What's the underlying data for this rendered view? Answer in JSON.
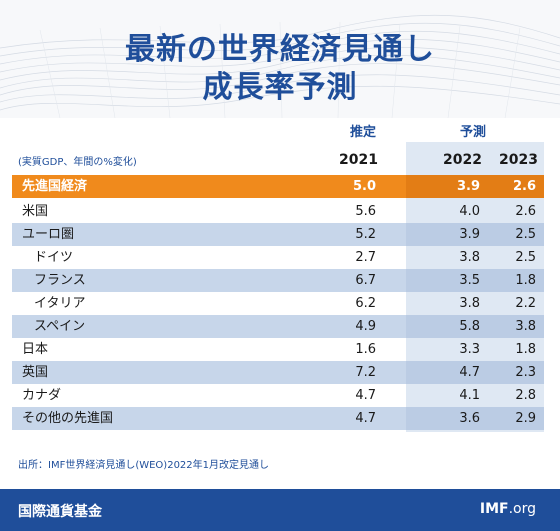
{
  "title_line1": "最新の世界経済見通し",
  "title_line2": "成長率予測",
  "header": {
    "estimate_label": "推定",
    "forecast_label": "予測",
    "unit_note": "(実質GDP、年間の%変化)",
    "years": [
      "2021",
      "2022",
      "2023"
    ]
  },
  "rows": [
    {
      "name": "先進国経済",
      "v2021": "5.0",
      "v2022": "3.9",
      "v2023": "2.6"
    },
    {
      "name": "米国",
      "v2021": "5.6",
      "v2022": "4.0",
      "v2023": "2.6"
    },
    {
      "name": "ユーロ圏",
      "v2021": "5.2",
      "v2022": "3.9",
      "v2023": "2.5"
    },
    {
      "name": "ドイツ",
      "v2021": "2.7",
      "v2022": "3.8",
      "v2023": "2.5"
    },
    {
      "name": "フランス",
      "v2021": "6.7",
      "v2022": "3.5",
      "v2023": "1.8"
    },
    {
      "name": "イタリア",
      "v2021": "6.2",
      "v2022": "3.8",
      "v2023": "2.2"
    },
    {
      "name": "スペイン",
      "v2021": "4.9",
      "v2022": "5.8",
      "v2023": "3.8"
    },
    {
      "name": "日本",
      "v2021": "1.6",
      "v2022": "3.3",
      "v2023": "1.8"
    },
    {
      "name": "英国",
      "v2021": "7.2",
      "v2022": "4.7",
      "v2023": "2.3"
    },
    {
      "name": "カナダ",
      "v2021": "4.7",
      "v2022": "4.1",
      "v2023": "2.8"
    },
    {
      "name": "その他の先進国",
      "v2021": "4.7",
      "v2022": "3.6",
      "v2023": "2.9"
    }
  ],
  "source": "出所：IMF世界経済見通し(WEO)2022年1月改定見通し",
  "footer": {
    "org_name": "国際通貨基金",
    "site_bold": "IMF",
    "site_rest": ".org"
  },
  "colors": {
    "brand_blue": "#1f4e9a",
    "highlight_orange": "#f08a1c",
    "band_blue": "#c7d6ea",
    "forecast_shade": "#dfe8f3"
  }
}
